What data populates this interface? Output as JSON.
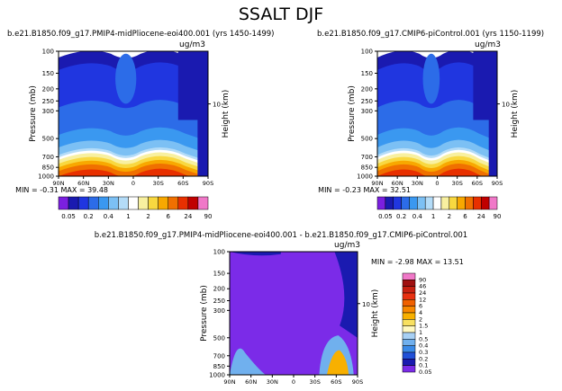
{
  "title": "SSALT DJF",
  "units": "ug/m3",
  "y_axis_label": "Pressure (mb)",
  "right_axis_label": "Height (km)",
  "right_axis_ticks": [
    "10"
  ],
  "x_ticks": [
    "90N",
    "60N",
    "30N",
    "0",
    "30S",
    "60S",
    "90S"
  ],
  "y_ticks": [
    "100",
    "150",
    "200",
    "250",
    "300",
    "500",
    "700",
    "850",
    "1000"
  ],
  "levels_top": [
    "0.05",
    "0.2",
    "0.4",
    "1",
    "2",
    "6",
    "24",
    "90"
  ],
  "levels_diff": [
    "90",
    "46",
    "24",
    "12",
    "6",
    "4",
    "2",
    "1.5",
    "1",
    "0.5",
    "0.4",
    "0.3",
    "0.2",
    "0.1",
    "0.05"
  ],
  "colors": {
    "scale": [
      "#7b1fe0",
      "#1a1ab0",
      "#2036e0",
      "#2c6ce8",
      "#3a98f0",
      "#7cc0f4",
      "#b4dcf8",
      "#ffffff",
      "#f8f0a0",
      "#f8d840",
      "#f8a800",
      "#f07000",
      "#e83000",
      "#c00000",
      "#f078c8"
    ],
    "diff_background": "#7b2be8",
    "diff_scale": [
      "#f078c8",
      "#a01010",
      "#c82010",
      "#e83010",
      "#f06000",
      "#f88800",
      "#f8b000",
      "#f8e060",
      "#fff8c0",
      "#a8d0f4",
      "#70b0ee",
      "#3a8ae8",
      "#2050d8",
      "#1a1ab0",
      "#7b2be8"
    ]
  },
  "chart_data": [
    {
      "type": "heatmap",
      "panel": "left",
      "title": "b.e21.B1850.f09_g17.PMIP4-midPliocene-eoi400.001 (yrs 1450-1499)",
      "subtitle": "MIN = -0.31 MAX = 39.48",
      "xlabel": "",
      "ylabel": "Pressure (mb)",
      "xlim": [
        90,
        -90
      ],
      "ylim": [
        1000,
        100
      ]
    },
    {
      "type": "heatmap",
      "panel": "right",
      "title": "b.e21.B1850.f09_g17.CMIP6-piControl.001 (yrs 1150-1199)",
      "subtitle": "MIN = -0.23 MAX = 32.51",
      "xlabel": "",
      "ylabel": "Pressure (mb)",
      "xlim": [
        90,
        -90
      ],
      "ylim": [
        1000,
        100
      ]
    },
    {
      "type": "heatmap",
      "panel": "difference",
      "title": "b.e21.B1850.f09_g17.PMIP4-midPliocene-eoi400.001 - b.e21.B1850.f09_g17.CMIP6-piControl.001",
      "subtitle": "MIN = -2.98 MAX = 13.51",
      "xlabel": "",
      "ylabel": "Pressure (mb)",
      "xlim": [
        90,
        -90
      ],
      "ylim": [
        1000,
        100
      ]
    }
  ]
}
